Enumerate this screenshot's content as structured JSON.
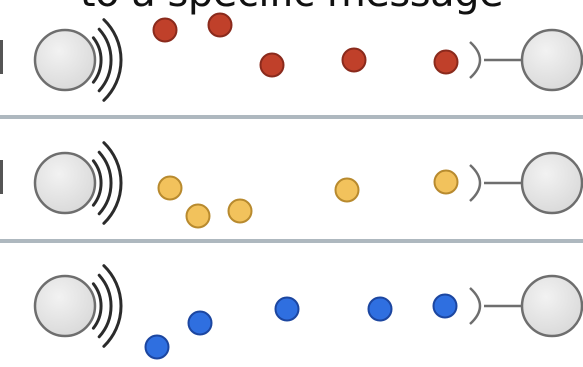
{
  "caption": "to a specific message",
  "colors": {
    "background": "#ffffff",
    "node_fill": "#d9d9d9",
    "node_stroke": "#6e6e6e",
    "wave_stroke": "#2b2b2b",
    "divider": "#aeb8bf",
    "edge_mark": "#555555"
  },
  "rows": [
    {
      "name": "red",
      "dot_color": "#c0402a",
      "dot_stroke": "#8a2a1c",
      "dot_count": 5,
      "icons": [
        "sender-node-icon",
        "signal-waves-icon",
        "receptor-icon",
        "receiver-node-icon"
      ]
    },
    {
      "name": "yellow",
      "dot_color": "#f2c25c",
      "dot_stroke": "#b88a2e",
      "dot_count": 5,
      "icons": [
        "sender-node-icon",
        "signal-waves-icon",
        "receptor-icon",
        "receiver-node-icon"
      ]
    },
    {
      "name": "blue",
      "dot_color": "#2f6fe0",
      "dot_stroke": "#1c46a0",
      "dot_count": 5,
      "icons": [
        "sender-node-icon",
        "signal-waves-icon",
        "receptor-icon",
        "receiver-node-icon"
      ]
    }
  ]
}
